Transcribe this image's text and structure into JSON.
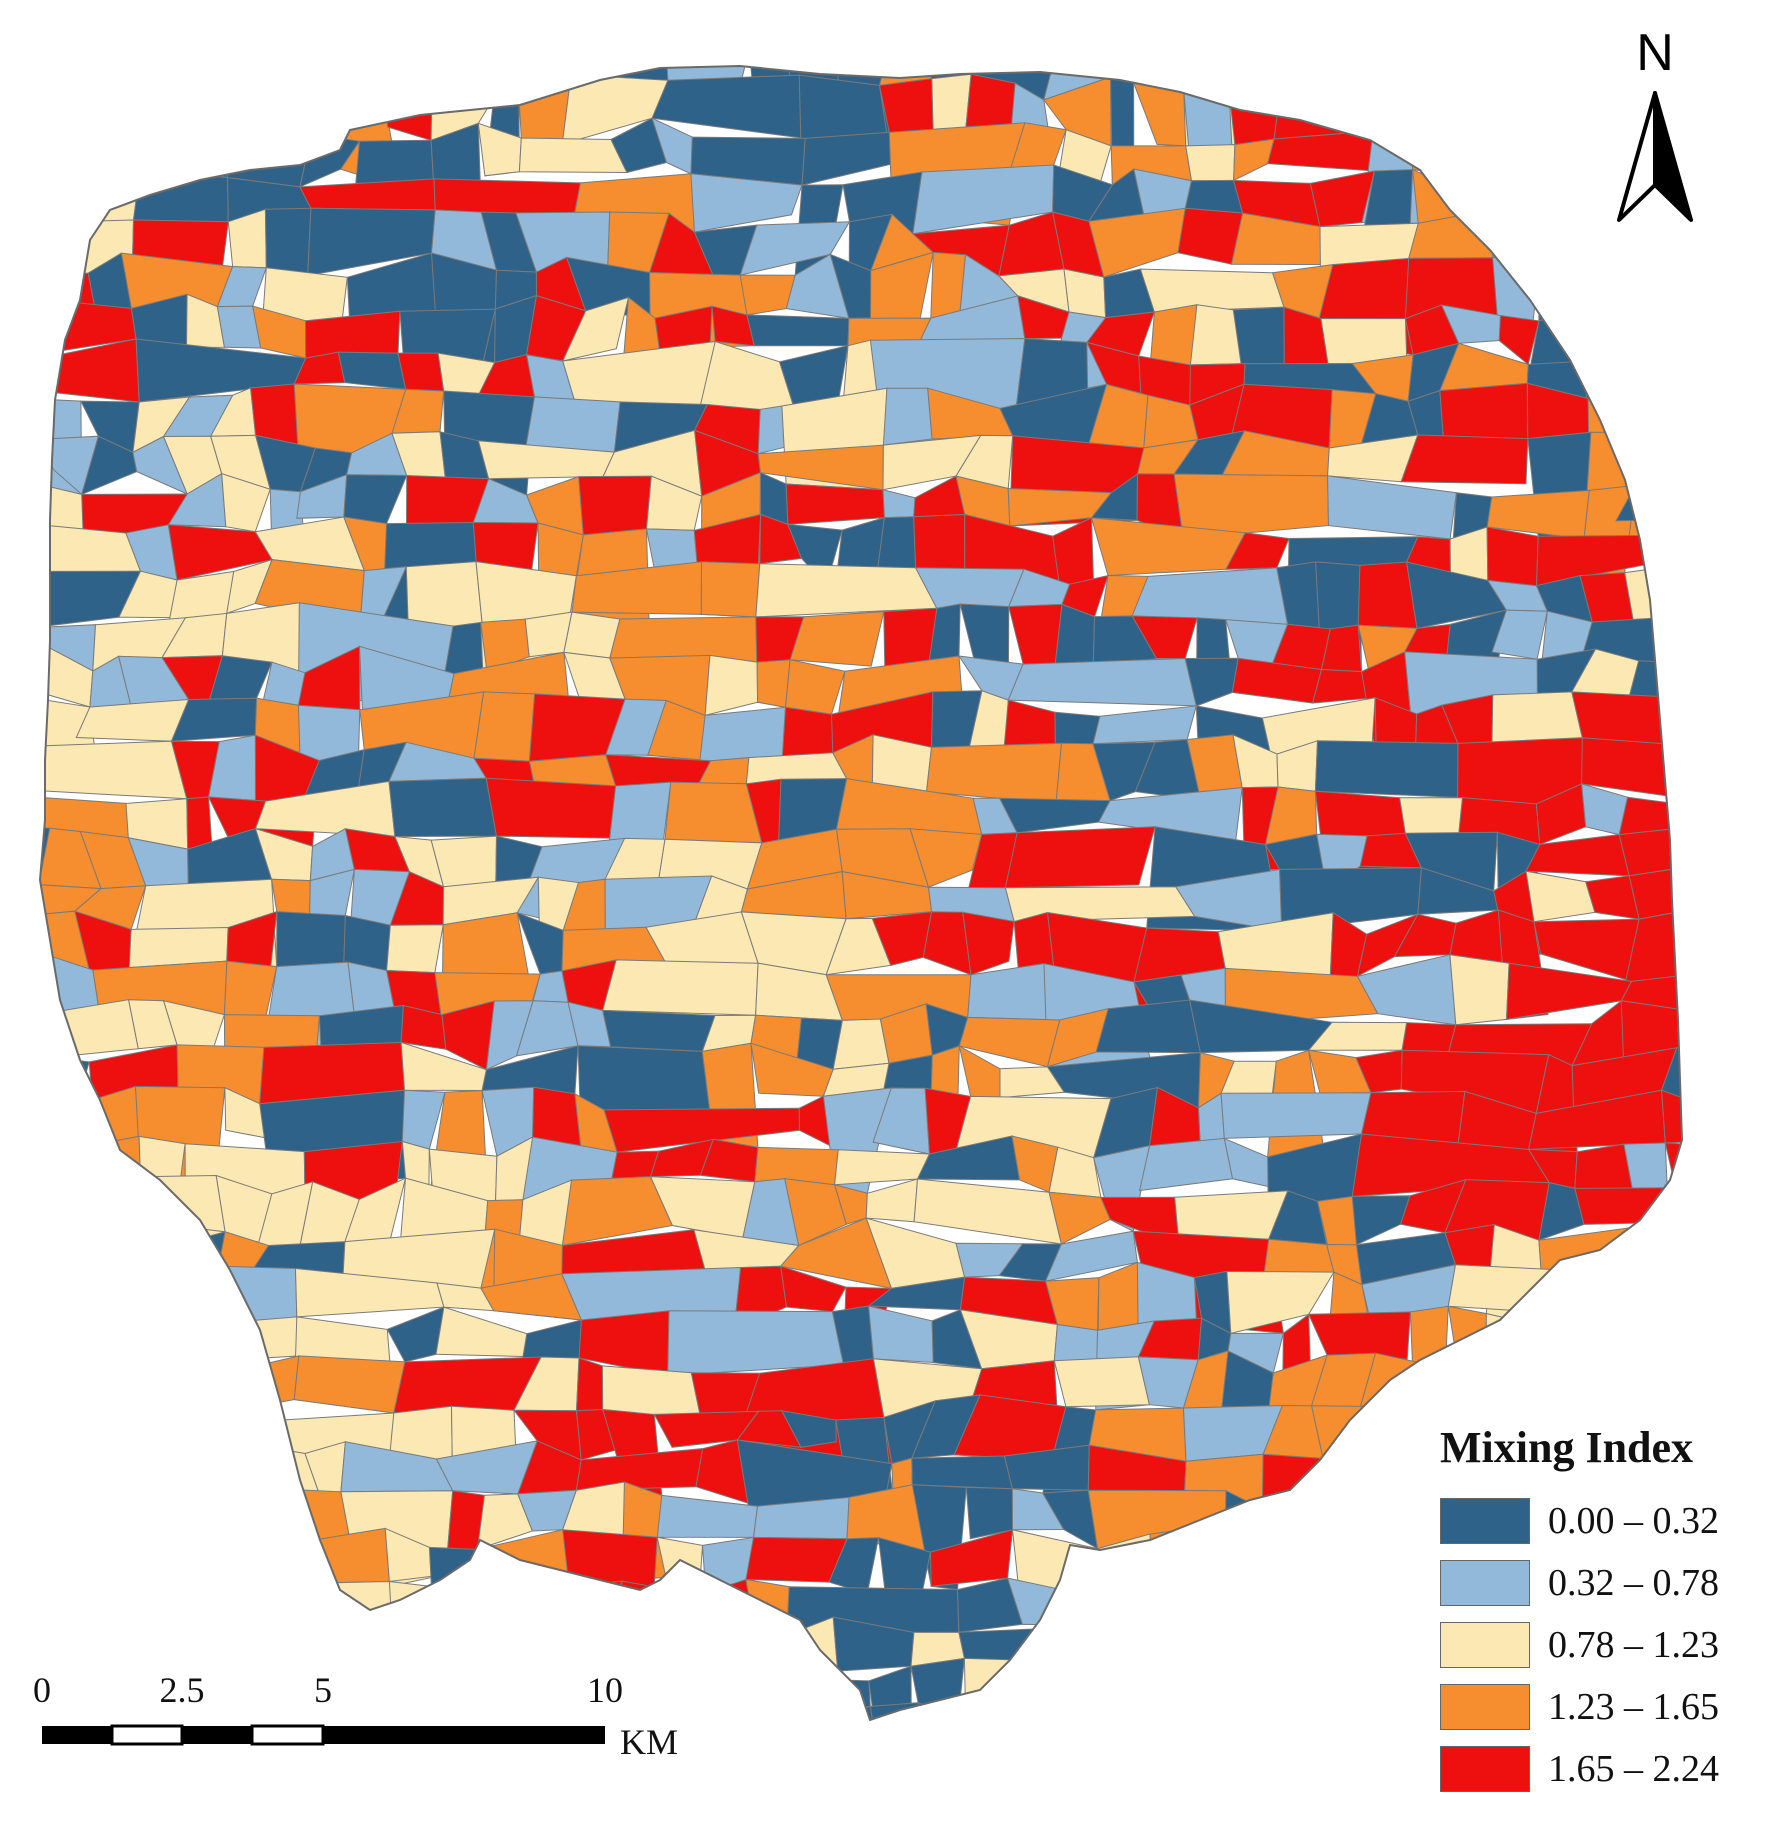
{
  "north_arrow": {
    "label": "N",
    "icon": "north-arrow-icon"
  },
  "legend": {
    "title": "Mixing Index",
    "classes": [
      {
        "label": "0.00 – 0.32",
        "color": "#2f6289"
      },
      {
        "label": "0.32 – 0.78",
        "color": "#92b9da"
      },
      {
        "label": "0.78 – 1.23",
        "color": "#fbe8b2"
      },
      {
        "label": "1.23 – 1.65",
        "color": "#f68d2e"
      },
      {
        "label": "1.65 – 2.24",
        "color": "#ee0f0f"
      }
    ]
  },
  "scalebar": {
    "ticks": [
      "0",
      "2.5",
      "5",
      "10"
    ],
    "unit": "KM"
  },
  "colors": {
    "boundary_stroke": "#7a7a7a",
    "background": "#ffffff"
  }
}
